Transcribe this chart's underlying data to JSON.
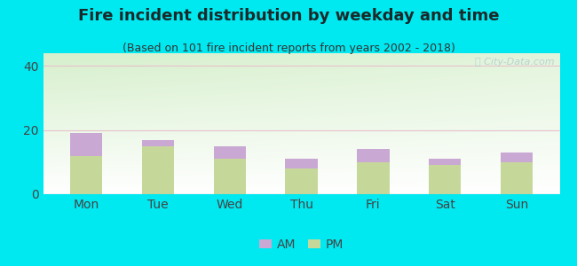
{
  "title": "Fire incident distribution by weekday and time",
  "subtitle": "(Based on 101 fire incident reports from years 2002 - 2018)",
  "categories": [
    "Mon",
    "Tue",
    "Wed",
    "Thu",
    "Fri",
    "Sat",
    "Sun"
  ],
  "pm_values": [
    12,
    15,
    11,
    8,
    10,
    9,
    10
  ],
  "am_values": [
    7,
    2,
    4,
    3,
    4,
    2,
    3
  ],
  "am_color": "#c9a8d4",
  "pm_color": "#c5d89a",
  "background_color": "#00e8f0",
  "grid_color": "#e8c0cc",
  "yticks": [
    0,
    20,
    40
  ],
  "ylim": [
    0,
    44
  ],
  "bar_width": 0.45,
  "title_fontsize": 13,
  "subtitle_fontsize": 9,
  "tick_fontsize": 10,
  "legend_fontsize": 10,
  "watermark_text": "Ⓢ City-Data.com",
  "watermark_color": "#a8c4cc",
  "watermark_alpha": 0.7,
  "title_color": "#1a2a2a",
  "subtitle_color": "#333333",
  "tick_color": "#444444"
}
